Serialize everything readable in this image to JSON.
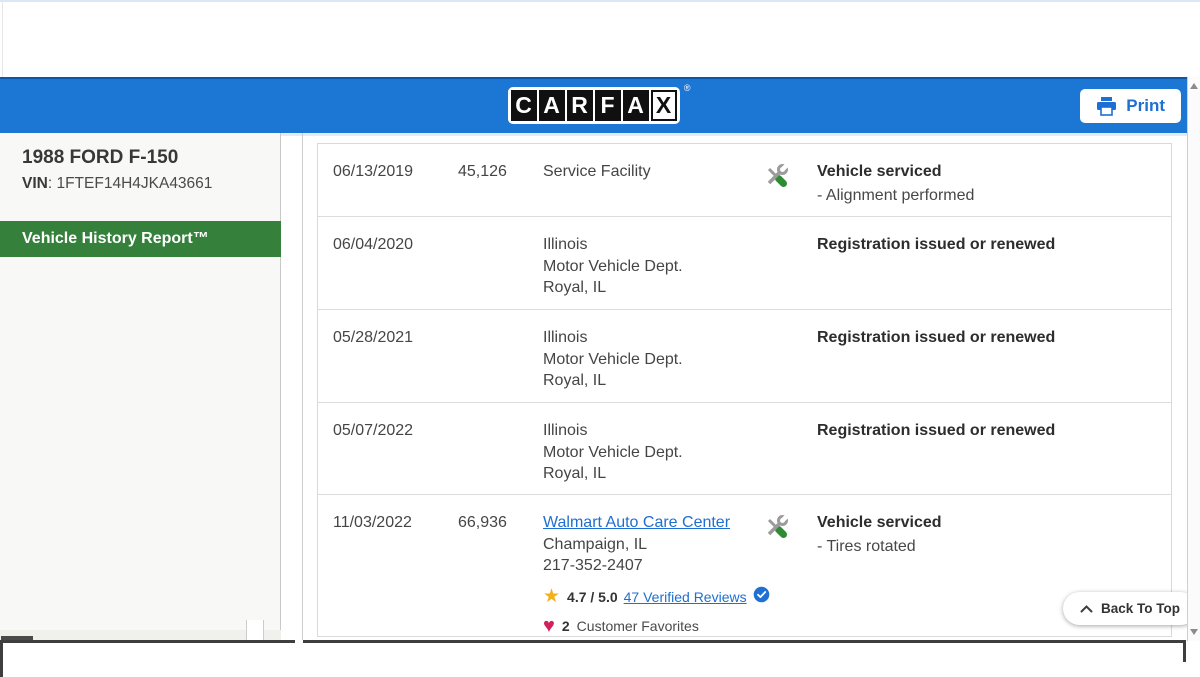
{
  "header": {
    "logo_letters": [
      "C",
      "A",
      "R",
      "F",
      "A",
      "X"
    ],
    "registered_mark": "®",
    "print_label": "Print"
  },
  "sidebar": {
    "vehicle_title": "1988 FORD F-150",
    "vin_label": "VIN",
    "vin_separator": ": ",
    "vin_value": "1FTEF14H4JKA43661",
    "report_banner": "Vehicle History Report™"
  },
  "history": {
    "rows": [
      {
        "date": "06/13/2019",
        "mileage": "45,126",
        "source_lines": [
          "Service Facility"
        ],
        "service_icon": true,
        "title": "Vehicle serviced",
        "details": [
          "- Alignment performed"
        ]
      },
      {
        "date": "06/04/2020",
        "mileage": "",
        "source_lines": [
          "Illinois",
          "Motor Vehicle Dept.",
          "Royal, IL"
        ],
        "service_icon": false,
        "title": "Registration issued or renewed",
        "details": []
      },
      {
        "date": "05/28/2021",
        "mileage": "",
        "source_lines": [
          "Illinois",
          "Motor Vehicle Dept.",
          "Royal, IL"
        ],
        "service_icon": false,
        "title": "Registration issued or renewed",
        "details": []
      },
      {
        "date": "05/07/2022",
        "mileage": "",
        "source_lines": [
          "Illinois",
          "Motor Vehicle Dept.",
          "Royal, IL"
        ],
        "service_icon": false,
        "title": "Registration issued or renewed",
        "details": []
      },
      {
        "date": "11/03/2022",
        "mileage": "66,936",
        "source_link": "Walmart Auto Care Center",
        "source_lines": [
          "Champaign, IL",
          "217-352-2407"
        ],
        "rating": {
          "score": "4.7 / 5.0",
          "reviews_link": "47 Verified Reviews"
        },
        "favorites": {
          "count": "2",
          "label": "Customer Favorites"
        },
        "service_icon": true,
        "title": "Vehicle serviced",
        "details": [
          "- Tires rotated"
        ]
      }
    ]
  },
  "back_to_top_label": "Back To Top",
  "colors": {
    "header_blue": "#1c76d3",
    "header_border_blue": "#0d56a8",
    "banner_green": "#35813c",
    "link_blue": "#1e6fd0",
    "star_gold": "#f2b01e",
    "heart_pink": "#d2205f",
    "badge_blue": "#1f70d4",
    "wrench_gray": "#9b9b9b",
    "handle_green": "#2e8b34"
  }
}
